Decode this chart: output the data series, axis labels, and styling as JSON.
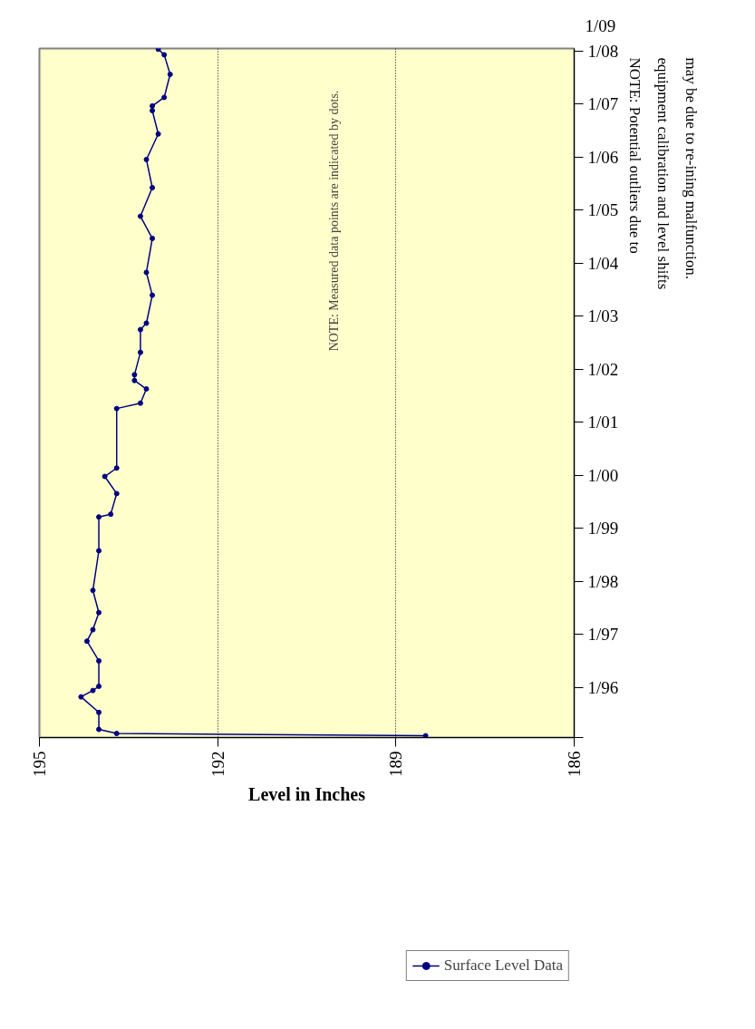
{
  "chart_data": {
    "type": "line",
    "orientation": "horizontal",
    "xlabel": "Level in Inches",
    "annotations": [
      "NOTE: Measured data points are indicated by dots.",
      "NOTE: Potential outliers due to equipment calibration and level shifts may be due to re-ining malfunction.",
      "1/09"
    ],
    "x": [
      "1995-02-01",
      "1995-02-17",
      "1995-03-17",
      "1995-07-12",
      "1995-10-27",
      "1995-12-10",
      "1996-01-08",
      "1996-07-01",
      "1996-11-14",
      "1997-02-01",
      "1997-05-30",
      "1997-10-30",
      "1998-07-30",
      "1999-03-20",
      "1999-04-08",
      "1999-08-28",
      "1999-12-24",
      "2000-02-20",
      "2001-04-05",
      "2001-05-12",
      "2001-08-18",
      "2001-10-15",
      "2001-11-24",
      "2002-04-27",
      "2002-10-01",
      "2002-11-14",
      "2003-05-26",
      "2003-10-30",
      "2004-06-20",
      "2004-11-20",
      "2005-06-05",
      "2005-12-16",
      "2006-06-10",
      "2006-11-18",
      "2006-12-20",
      "2007-02-17",
      "2007-07-26",
      "2007-12-08",
      "2008-01-15"
    ],
    "series": [
      {
        "name": "Surface Level Data",
        "color": "#000080",
        "values": [
          188.5,
          193.7,
          194.0,
          194.0,
          194.3,
          194.1,
          194.0,
          194.0,
          194.2,
          194.1,
          194.0,
          194.1,
          194.0,
          194.0,
          193.8,
          193.7,
          193.9,
          193.7,
          193.7,
          193.3,
          193.2,
          193.4,
          193.4,
          193.3,
          193.3,
          193.2,
          193.1,
          193.2,
          193.1,
          193.3,
          193.1,
          193.2,
          193.0,
          193.1,
          193.1,
          192.9,
          192.8,
          192.9,
          193.0
        ]
      }
    ],
    "xlim": [
      195,
      186
    ],
    "xticks": [
      195,
      192,
      189,
      186
    ],
    "ylim": [
      "1995-01-20",
      "2008-01-20"
    ],
    "yticks": [
      {
        "value": "1995-01-20",
        "label": null
      },
      {
        "value": "1996-01-01",
        "label": "1/96"
      },
      {
        "value": "1997-01-01",
        "label": "1/97"
      },
      {
        "value": "1998-01-01",
        "label": "1/98"
      },
      {
        "value": "1999-01-01",
        "label": "1/99"
      },
      {
        "value": "2000-01-01",
        "label": "1/00"
      },
      {
        "value": "2001-01-01",
        "label": "1/01"
      },
      {
        "value": "2002-01-01",
        "label": "1/02"
      },
      {
        "value": "2003-01-01",
        "label": "1/03"
      },
      {
        "value": "2004-01-01",
        "label": "1/04"
      },
      {
        "value": "2005-01-01",
        "label": "1/05"
      },
      {
        "value": "2006-01-01",
        "label": "1/06"
      },
      {
        "value": "2007-01-01",
        "label": "1/07"
      },
      {
        "value": "2008-01-01",
        "label": "1/08"
      }
    ],
    "grid": "x",
    "legend": "bottom right",
    "marker": "circle",
    "line_style": "solid"
  }
}
